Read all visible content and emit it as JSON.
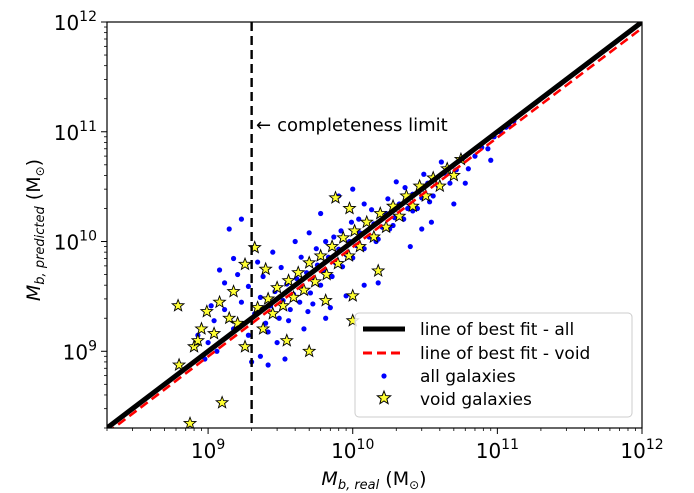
{
  "chart_data": {
    "type": "scatter",
    "x_scale": "log",
    "y_scale": "log",
    "xlim": [
      200000000,
      1000000000000
    ],
    "ylim": [
      200000000,
      1000000000000
    ],
    "x_ticks": [
      {
        "base": "10",
        "exp": "9",
        "value": 1000000000
      },
      {
        "base": "10",
        "exp": "10",
        "value": 10000000000
      },
      {
        "base": "10",
        "exp": "11",
        "value": 100000000000
      },
      {
        "base": "10",
        "exp": "12",
        "value": 1000000000000
      }
    ],
    "y_ticks": [
      {
        "base": "10",
        "exp": "9",
        "value": 1000000000
      },
      {
        "base": "10",
        "exp": "10",
        "value": 10000000000
      },
      {
        "base": "10",
        "exp": "11",
        "value": 100000000000
      },
      {
        "base": "10",
        "exp": "12",
        "value": 1000000000000
      }
    ],
    "xlabel": {
      "main": "M",
      "sub": "b, real",
      "unit_open": " (M",
      "unit_sub": "⊙",
      "unit_close": ")"
    },
    "ylabel": {
      "main": "M",
      "sub": "b, predicted",
      "unit_open": "  (M",
      "unit_sub": "⊙",
      "unit_close": ")"
    },
    "grid": false,
    "legend_position": "lower-right",
    "colors": {
      "all": "#0000ff",
      "void_fill": "#ffff33",
      "void_edge": "#000000",
      "fit_all": "#000000",
      "fit_void": "#ff0000",
      "limit": "#000000"
    },
    "annotation": {
      "text": "completeness limit",
      "arrow": "←"
    },
    "completeness_limit_x": 2000000000,
    "fit_lines": [
      {
        "name": "line of best fit - all",
        "style": "solid",
        "color": "#000000",
        "x": [
          200000000,
          1000000000000
        ],
        "y": [
          200000000,
          1000000000000
        ]
      },
      {
        "name": "line of best fit - void",
        "style": "dashed",
        "color": "#ff0000",
        "x": [
          200000000,
          1000000000000
        ],
        "y": [
          180000000,
          880000000000
        ]
      }
    ],
    "series": [
      {
        "name": "all galaxies",
        "marker": "dot",
        "color": "#0000ff",
        "points": [
          [
            1100000000.0,
            1900000000.0
          ],
          [
            1300000000.0,
            2400000000.0
          ],
          [
            1500000000.0,
            1600000000.0
          ],
          [
            1700000000.0,
            2800000000.0
          ],
          [
            1900000000.0,
            1400000000.0
          ],
          [
            2100000000.0,
            2200000000.0
          ],
          [
            2300000000.0,
            3100000000.0
          ],
          [
            2500000000.0,
            1800000000.0
          ],
          [
            2700000000.0,
            2600000000.0
          ],
          [
            2900000000.0,
            3500000000.0
          ],
          [
            3100000000.0,
            2000000000.0
          ],
          [
            3300000000.0,
            2900000000.0
          ],
          [
            3500000000.0,
            4100000000.0
          ],
          [
            3700000000.0,
            2400000000.0
          ],
          [
            3900000000.0,
            3300000000.0
          ],
          [
            4100000000.0,
            4600000000.0
          ],
          [
            4300000000.0,
            2800000000.0
          ],
          [
            4500000000.0,
            3900000000.0
          ],
          [
            4800000000.0,
            5200000000.0
          ],
          [
            5100000000.0,
            3400000000.0
          ],
          [
            5400000000.0,
            4500000000.0
          ],
          [
            5700000000.0,
            6100000000.0
          ],
          [
            6000000000.0,
            4000000000.0
          ],
          [
            6400000000.0,
            5300000000.0
          ],
          [
            6800000000.0,
            7200000000.0
          ],
          [
            7200000000.0,
            4800000000.0
          ],
          [
            7600000000.0,
            6400000000.0
          ],
          [
            8000000000.0,
            8500000000.0
          ],
          [
            8500000000.0,
            5900000000.0
          ],
          [
            9000000000.0,
            7600000000.0
          ],
          [
            9500000000.0,
            10000000000.0
          ],
          [
            10000000000.0,
            7100000000.0
          ],
          [
            10600000000.0,
            9200000000.0
          ],
          [
            11200000000.0,
            12000000000.0
          ],
          [
            12000000000.0,
            8600000000.0
          ],
          [
            13000000000.0,
            11000000000.0
          ],
          [
            14000000000.0,
            14500000000.0
          ],
          [
            15000000000.0,
            10500000000.0
          ],
          [
            16000000000.0,
            13500000000.0
          ],
          [
            17000000000.0,
            18000000000.0
          ],
          [
            18000000000.0,
            13000000000.0
          ],
          [
            19500000000.0,
            16500000000.0
          ],
          [
            21000000000.0,
            22000000000.0
          ],
          [
            22500000000.0,
            16000000000.0
          ],
          [
            24000000000.0,
            20000000000.0
          ],
          [
            26000000000.0,
            27000000000.0
          ],
          [
            28000000000.0,
            20000000000.0
          ],
          [
            30000000000.0,
            25000000000.0
          ],
          [
            33000000000.0,
            34000000000.0
          ],
          [
            36000000000.0,
            26000000000.0
          ],
          [
            39000000000.0,
            32000000000.0
          ],
          [
            43000000000.0,
            42000000000.0
          ],
          [
            47000000000.0,
            34000000000.0
          ],
          [
            52000000000.0,
            45000000000.0
          ],
          [
            57000000000.0,
            56000000000.0
          ],
          [
            63000000000.0,
            46000000000.0
          ],
          [
            70000000000.0,
            60000000000.0
          ],
          [
            78000000000.0,
            72000000000.0
          ],
          [
            86000000000.0,
            70000000000.0
          ],
          [
            95000000000.0,
            90000000000.0
          ],
          [
            105000000000.0,
            100000000000.0
          ],
          [
            115000000000.0,
            110000000000.0
          ],
          [
            120000000000.0,
            115000000000.0
          ],
          [
            130000000000.0,
            125000000000.0
          ],
          [
            20000000000.0,
            35000000000.0
          ],
          [
            15000000000.0,
            4200000000.0
          ],
          [
            25000000000.0,
            9000000000.0
          ],
          [
            35000000000.0,
            15000000000.0
          ],
          [
            7000000000.0,
            2500000000.0
          ],
          [
            12000000000.0,
            22000000000.0
          ],
          [
            5000000000.0,
            12000000000.0
          ],
          [
            4000000000.0,
            10000000000.0
          ],
          [
            6000000000.0,
            18000000000.0
          ],
          [
            8000000000.0,
            26000000000.0
          ],
          [
            10000000000.0,
            30000000000.0
          ],
          [
            2800000000.0,
            8000000000.0
          ],
          [
            2200000000.0,
            6500000000.0
          ],
          [
            1600000000.0,
            5000000000.0
          ],
          [
            1300000000.0,
            4200000000.0
          ],
          [
            1200000000.0,
            5500000000.0
          ],
          [
            1500000000.0,
            7000000000.0
          ],
          [
            1400000000.0,
            13000000000.0
          ],
          [
            1700000000.0,
            16000000000.0
          ],
          [
            3000000000.0,
            1200000000.0
          ],
          [
            2300000000.0,
            900000000.0
          ],
          [
            4600000000.0,
            1600000000.0
          ],
          [
            6500000000.0,
            2000000000.0
          ],
          [
            9000000000.0,
            3200000000.0
          ],
          [
            12000000000.0,
            4000000000.0
          ],
          [
            30000000000.0,
            13000000000.0
          ],
          [
            50000000000.0,
            22000000000.0
          ],
          [
            60000000000.0,
            34000000000.0
          ],
          [
            90000000000.0,
            55000000000.0
          ],
          [
            2400000000.0,
            4800000000.0
          ],
          [
            3200000000.0,
            5800000000.0
          ],
          [
            4400000000.0,
            7200000000.0
          ],
          [
            5600000000.0,
            8600000000.0
          ],
          [
            7400000000.0,
            11000000000.0
          ],
          [
            9800000000.0,
            15000000000.0
          ],
          [
            13500000000.0,
            19500000000.0
          ],
          [
            17500000000.0,
            24500000000.0
          ],
          [
            23000000000.0,
            31000000000.0
          ],
          [
            31000000000.0,
            41000000000.0
          ],
          [
            41000000000.0,
            53000000000.0
          ],
          [
            1000000000.0,
            1200000000.0
          ],
          [
            850000000.0,
            1400000000.0
          ],
          [
            950000000.0,
            850000000.0
          ],
          [
            1150000000.0,
            1000000000.0
          ],
          [
            1050000000.0,
            2600000000.0
          ],
          [
            1900000000.0,
            3900000000.0
          ],
          [
            2600000000.0,
            1500000000.0
          ],
          [
            3600000000.0,
            1900000000.0
          ],
          [
            4900000000.0,
            2300000000.0
          ],
          [
            5300000000.0,
            2700000000.0
          ],
          [
            2000000000.0,
            800000000.0
          ],
          [
            2600000000.0,
            750000000.0
          ],
          [
            3400000000.0,
            850000000.0
          ],
          [
            6500000000.0,
            10000000000.0
          ],
          [
            8300000000.0,
            12500000000.0
          ],
          [
            11000000000.0,
            16000000000.0
          ],
          [
            14500000000.0,
            10000000000.0
          ],
          [
            19000000000.0,
            14000000000.0
          ],
          [
            26000000000.0,
            19000000000.0
          ],
          [
            34000000000.0,
            23000000000.0
          ]
        ]
      },
      {
        "name": "void galaxies",
        "marker": "star",
        "color": "#ffff33",
        "points": [
          [
            620000000.0,
            2600000000.0
          ],
          [
            630000000.0,
            750000000.0
          ],
          [
            750000000.0,
            220000000.0
          ],
          [
            800000000.0,
            1100000000.0
          ],
          [
            850000000.0,
            1250000000.0
          ],
          [
            900000000.0,
            1600000000.0
          ],
          [
            980000000.0,
            2300000000.0
          ],
          [
            1100000000.0,
            1450000000.0
          ],
          [
            1250000000.0,
            340000000.0
          ],
          [
            1400000000.0,
            2000000000.0
          ],
          [
            1600000000.0,
            1800000000.0
          ],
          [
            1800000000.0,
            6200000000.0
          ],
          [
            2100000000.0,
            8800000000.0
          ],
          [
            2200000000.0,
            2500000000.0
          ],
          [
            2400000000.0,
            1600000000.0
          ],
          [
            2600000000.0,
            3000000000.0
          ],
          [
            2800000000.0,
            2200000000.0
          ],
          [
            3000000000.0,
            3800000000.0
          ],
          [
            3300000000.0,
            2600000000.0
          ],
          [
            3600000000.0,
            4400000000.0
          ],
          [
            3900000000.0,
            3100000000.0
          ],
          [
            4200000000.0,
            5200000000.0
          ],
          [
            4600000000.0,
            3600000000.0
          ],
          [
            5000000000.0,
            6400000000.0
          ],
          [
            5500000000.0,
            4300000000.0
          ],
          [
            6000000000.0,
            7400000000.0
          ],
          [
            6600000000.0,
            5000000000.0
          ],
          [
            7200000000.0,
            9000000000.0
          ],
          [
            7900000000.0,
            6300000000.0
          ],
          [
            8600000000.0,
            10800000000.0
          ],
          [
            9400000000.0,
            7400000000.0
          ],
          [
            10300000000.0,
            12500000000.0
          ],
          [
            11200000000.0,
            9000000000.0
          ],
          [
            12500000000.0,
            15000000000.0
          ],
          [
            14000000000.0,
            11000000000.0
          ],
          [
            15500000000.0,
            18000000000.0
          ],
          [
            17000000000.0,
            13500000000.0
          ],
          [
            19000000000.0,
            21000000000.0
          ],
          [
            21000000000.0,
            17000000000.0
          ],
          [
            23500000000.0,
            26000000000.0
          ],
          [
            26000000000.0,
            21000000000.0
          ],
          [
            29000000000.0,
            32000000000.0
          ],
          [
            32000000000.0,
            26000000000.0
          ],
          [
            36000000000.0,
            38000000000.0
          ],
          [
            40000000000.0,
            32000000000.0
          ],
          [
            45000000000.0,
            46000000000.0
          ],
          [
            50000000000.0,
            40000000000.0
          ],
          [
            56000000000.0,
            56000000000.0
          ],
          [
            10000000000.0,
            1900000000.0
          ],
          [
            7600000000.0,
            25000000000.0
          ],
          [
            9500000000.0,
            20000000000.0
          ],
          [
            15000000000.0,
            5400000000.0
          ],
          [
            10000000000.0,
            3200000000.0
          ],
          [
            6500000000.0,
            2900000000.0
          ],
          [
            5000000000.0,
            1000000000.0
          ],
          [
            3500000000.0,
            1250000000.0
          ],
          [
            1800000000.0,
            1100000000.0
          ],
          [
            1200000000.0,
            2800000000.0
          ],
          [
            1500000000.0,
            3500000000.0
          ],
          [
            2500000000.0,
            5600000000.0
          ]
        ]
      }
    ]
  }
}
